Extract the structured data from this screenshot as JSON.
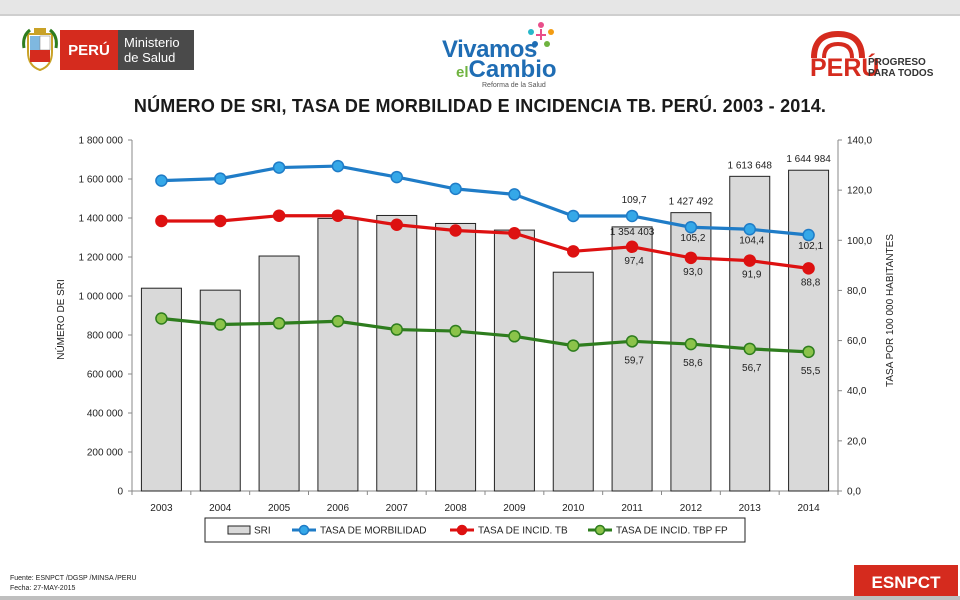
{
  "header": {
    "minsa_peru": "PERÚ",
    "minsa_line1": "Ministerio",
    "minsa_line2": "de Salud",
    "vivamos_line1": "Vivamos",
    "vivamos_el": "el",
    "vivamos_line2": "Cambio",
    "vivamos_sub": "Reforma de la Salud",
    "progreso_peru": "PERÚ",
    "progreso_line1": "PROGRESO",
    "progreso_line2": "PARA TODOS"
  },
  "footer": {
    "source": "Fuente: ESNPCT /DGSP /MINSA /PERU",
    "date": "Fecha: 27-MAY-2015",
    "badge": "ESNPCT"
  },
  "colors": {
    "bar_fill": "#d9d9d9",
    "morbilidad": "#1f7cc7",
    "incid_tb": "#dd1111",
    "incid_tbp_fp": "#2e7d1e",
    "marker_morbilidad": "#35a8e8",
    "marker_tbp_fp": "#8bc34a"
  },
  "chart_data": {
    "type": "bar",
    "title": "NÚMERO DE SRI, TASA DE MORBILIDAD E INCIDENCIA TB. PERÚ. 2003 - 2014.",
    "categories": [
      "2003",
      "2004",
      "2005",
      "2006",
      "2007",
      "2008",
      "2009",
      "2010",
      "2011",
      "2012",
      "2013",
      "2014"
    ],
    "ylabel": "NÚMERO DE SRI",
    "y2label": "TASA POR 100 000 HABITANTES",
    "ylim": [
      0,
      1800000
    ],
    "y2lim": [
      0,
      140
    ],
    "yticks": [
      "0",
      "200 000",
      "400 000",
      "600 000",
      "800 000",
      "1 000 000",
      "1 200 000",
      "1 400 000",
      "1 600 000",
      "1 800 000"
    ],
    "y2ticks": [
      "0,0",
      "20,0",
      "40,0",
      "60,0",
      "80,0",
      "100,0",
      "120,0",
      "140,0"
    ],
    "series": [
      {
        "name": "SRI",
        "type": "bar",
        "axis": "left",
        "values": [
          1040000,
          1030000,
          1205000,
          1398000,
          1413000,
          1372000,
          1338000,
          1122000,
          1354403,
          1427492,
          1613648,
          1644984
        ],
        "labels": [
          "",
          "",
          "",
          "",
          "",
          "",
          "",
          "",
          "1 354 403",
          "1 427 492",
          "1 613 648",
          "1 644 984"
        ]
      },
      {
        "name": "TASA DE MORBILIDAD",
        "type": "line",
        "axis": "right",
        "values": [
          123.8,
          124.6,
          129.0,
          129.6,
          125.2,
          120.5,
          118.3,
          109.7,
          109.7,
          105.2,
          104.4,
          102.1
        ],
        "labels": [
          "",
          "",
          "",
          "",
          "",
          "",
          "",
          "",
          "109,7",
          "105,2",
          "104,4",
          "102,1"
        ]
      },
      {
        "name": "TASA DE INCID. TB",
        "type": "line",
        "axis": "right",
        "values": [
          107.7,
          107.7,
          109.8,
          109.8,
          106.2,
          103.9,
          102.8,
          95.6,
          97.4,
          93.0,
          91.9,
          88.8
        ],
        "labels": [
          "",
          "",
          "",
          "",
          "",
          "",
          "",
          "",
          "97,4",
          "93,0",
          "91,9",
          "88,8"
        ]
      },
      {
        "name": "TASA DE INCID. TBP FP",
        "type": "line",
        "axis": "right",
        "values": [
          68.8,
          66.4,
          66.9,
          67.7,
          64.4,
          63.8,
          61.7,
          58.0,
          59.7,
          58.6,
          56.7,
          55.5
        ],
        "labels": [
          "",
          "",
          "",
          "",
          "",
          "",
          "",
          "",
          "59,7",
          "58,6",
          "56,7",
          "55,5"
        ]
      }
    ],
    "legend_position": "bottom",
    "grid": false
  }
}
